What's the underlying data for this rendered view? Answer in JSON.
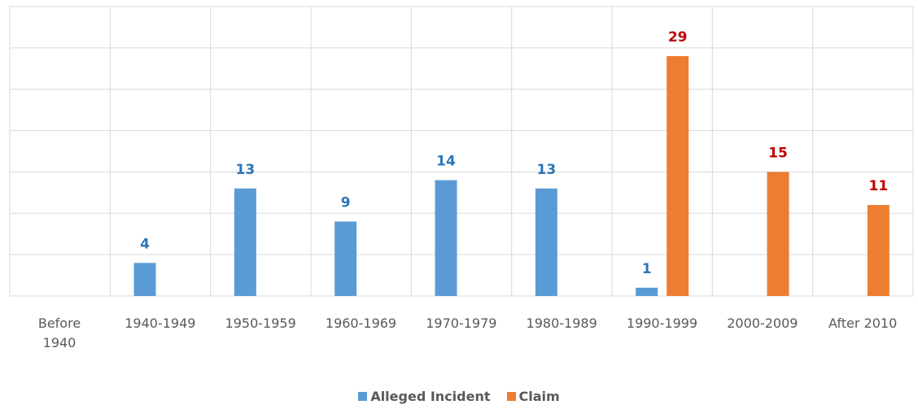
{
  "chart_data": {
    "type": "bar",
    "categories": [
      "Before 1940",
      "1940-1949",
      "1950-1959",
      "1960-1969",
      "1970-1979",
      "1980-1989",
      "1990-1999",
      "2000-2009",
      "After 2010"
    ],
    "series": [
      {
        "name": "Alleged Incident",
        "color": "#5b9bd5",
        "label_color": "#2e75b6",
        "values": [
          null,
          4,
          13,
          9,
          14,
          13,
          1,
          null,
          null
        ]
      },
      {
        "name": "Claim",
        "color": "#ed7d31",
        "label_color": "#c00000",
        "values": [
          null,
          null,
          null,
          null,
          null,
          null,
          29,
          15,
          11
        ]
      }
    ],
    "ylim": [
      0,
      35
    ],
    "yticks": [
      0,
      5,
      10,
      15,
      20,
      25,
      30,
      35
    ],
    "grid": true,
    "legend": "bottom"
  }
}
